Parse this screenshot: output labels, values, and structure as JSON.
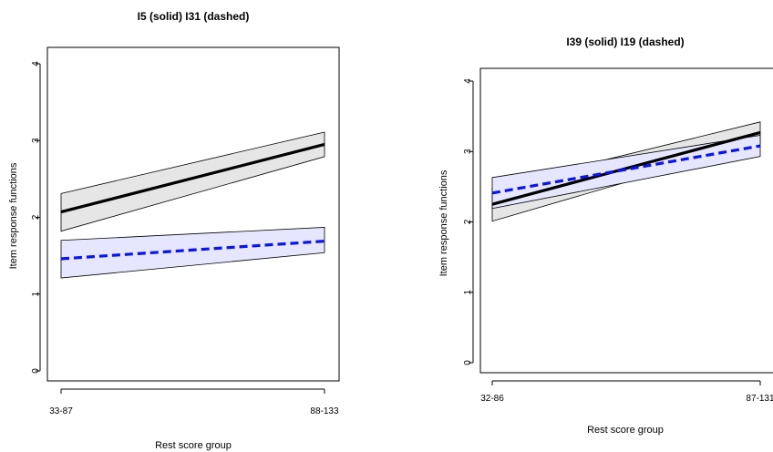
{
  "chart_data": [
    {
      "type": "line",
      "title": "I5 (solid) I31 (dashed)",
      "xlabel": "Rest score group",
      "ylabel": "Item response functions",
      "categories": [
        "33-87",
        "88-133"
      ],
      "ylim": [
        0,
        4
      ],
      "yticks": [
        "0",
        "1",
        "2",
        "3",
        "4"
      ],
      "grid": false,
      "series": [
        {
          "style": "solid",
          "color": "#000000",
          "band_color": "#e6e6e6",
          "values": [
            2.07,
            2.95
          ],
          "lower": [
            1.82,
            2.79
          ],
          "upper": [
            2.31,
            3.11
          ]
        },
        {
          "style": "dashed",
          "color": "#0a14e6",
          "band_color": "#e6e6ff",
          "values": [
            1.46,
            1.69
          ],
          "lower": [
            1.21,
            1.54
          ],
          "upper": [
            1.7,
            1.87
          ]
        }
      ]
    },
    {
      "type": "line",
      "title": "I39 (solid) I19 (dashed)",
      "xlabel": "Rest score group",
      "ylabel": "Item response functions",
      "categories": [
        "32-86",
        "87-131"
      ],
      "ylim": [
        0,
        4
      ],
      "yticks": [
        "0",
        "1",
        "2",
        "3",
        "4"
      ],
      "grid": false,
      "series": [
        {
          "style": "solid",
          "color": "#000000",
          "band_color": "#e6e6e6",
          "values": [
            2.25,
            3.27
          ],
          "lower": [
            2.01,
            3.12
          ],
          "upper": [
            2.49,
            3.42
          ]
        },
        {
          "style": "dashed",
          "color": "#0a14e6",
          "band_color": "#e6e6ff",
          "values": [
            2.41,
            3.08
          ],
          "lower": [
            2.19,
            2.93
          ],
          "upper": [
            2.63,
            3.23
          ]
        }
      ]
    }
  ]
}
